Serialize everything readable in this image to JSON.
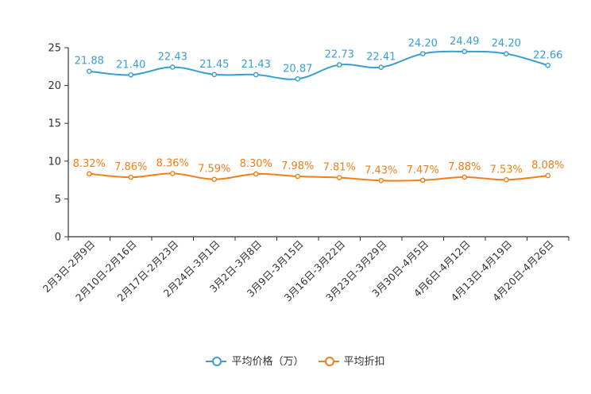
{
  "chart_data": {
    "type": "line",
    "categories": [
      "2月3日-2月9日",
      "2月10日-2月16日",
      "2月17日-2月23日",
      "2月24日-3月1日",
      "3月2日-3月8日",
      "3月9日-3月15日",
      "3月16日-3月22日",
      "3月23日-3月29日",
      "3月30日-4月5日",
      "4月6日-4月12日",
      "4月13日-4月19日",
      "4月20日-4月26日"
    ],
    "series": [
      {
        "name": "平均价格（万）",
        "color": "#3a9fd0",
        "values": [
          21.88,
          21.4,
          22.43,
          21.45,
          21.43,
          20.87,
          22.73,
          22.41,
          24.2,
          24.49,
          24.2,
          22.66
        ],
        "labels": [
          "21.88",
          "21.40",
          "22.43",
          "21.45",
          "21.43",
          "20.87",
          "22.73",
          "22.41",
          "24.20",
          "24.49",
          "24.20",
          "22.66"
        ]
      },
      {
        "name": "平均折扣",
        "color": "#f07f19",
        "values": [
          8.32,
          7.86,
          8.36,
          7.59,
          8.3,
          7.98,
          7.81,
          7.43,
          7.47,
          7.88,
          7.53,
          8.08
        ],
        "labels": [
          "8.32%",
          "7.86%",
          "8.36%",
          "7.59%",
          "8.30%",
          "7.98%",
          "7.81%",
          "7.43%",
          "7.47%",
          "7.88%",
          "7.53%",
          "8.08%"
        ]
      }
    ],
    "yticks": [
      "0",
      "5",
      "10",
      "15",
      "20",
      "25"
    ],
    "ylim": [
      0,
      25
    ],
    "xlabel": "",
    "ylabel": "",
    "legend_position": "bottom-center"
  }
}
